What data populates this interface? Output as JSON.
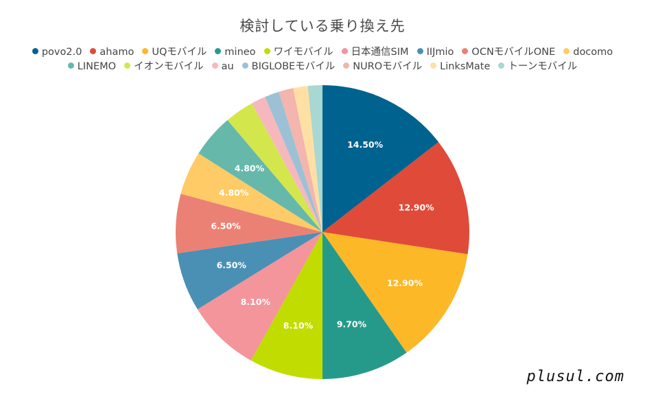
{
  "chart_data": {
    "type": "pie",
    "title": "検討している乗り換え先",
    "legend_position": "top",
    "start_angle_deg": 0,
    "direction": "clockwise",
    "slices": [
      {
        "label": "povo2.0",
        "value": 14.5,
        "display": "14.50%",
        "color": "#00628f"
      },
      {
        "label": "ahamo",
        "value": 12.9,
        "display": "12.90%",
        "color": "#e04a38"
      },
      {
        "label": "UQモバイル",
        "value": 12.9,
        "display": "12.90%",
        "color": "#fdb827"
      },
      {
        "label": "mineo",
        "value": 9.7,
        "display": "9.70%",
        "color": "#269a8a"
      },
      {
        "label": "ワイモバイル",
        "value": 8.1,
        "display": "8.10%",
        "color": "#c1dc00"
      },
      {
        "label": "日本通信SIM",
        "value": 8.1,
        "display": "8.10%",
        "color": "#f4949b"
      },
      {
        "label": "IIJmio",
        "value": 6.5,
        "display": "6.50%",
        "color": "#4a90b4"
      },
      {
        "label": "OCNモバイルONE",
        "value": 6.5,
        "display": "6.50%",
        "color": "#eb8174"
      },
      {
        "label": "docomo",
        "value": 4.8,
        "display": "4.80%",
        "color": "#fecb66"
      },
      {
        "label": "LINEMO",
        "value": 4.8,
        "display": "4.80%",
        "color": "#66b8ab"
      },
      {
        "label": "イオンモバイル",
        "value": 3.2,
        "display": "",
        "color": "#d3e74d"
      },
      {
        "label": "au",
        "value": 1.6,
        "display": "",
        "color": "#f6b8bc"
      },
      {
        "label": "BIGLOBEモバイル",
        "value": 1.6,
        "display": "",
        "color": "#9cc1d5"
      },
      {
        "label": "NUROモバイル",
        "value": 1.6,
        "display": "",
        "color": "#f3b5ae"
      },
      {
        "label": "LinksMate",
        "value": 1.6,
        "display": "",
        "color": "#ffe0a4"
      },
      {
        "label": "トーンモバイル",
        "value": 1.6,
        "display": "",
        "color": "#a9d7d2"
      }
    ]
  },
  "legend_rows": [
    [
      0,
      1,
      2,
      3,
      4,
      5,
      6,
      7,
      8
    ],
    [
      9,
      10,
      11,
      12,
      13,
      14,
      15
    ]
  ],
  "watermark": "plusul.com"
}
